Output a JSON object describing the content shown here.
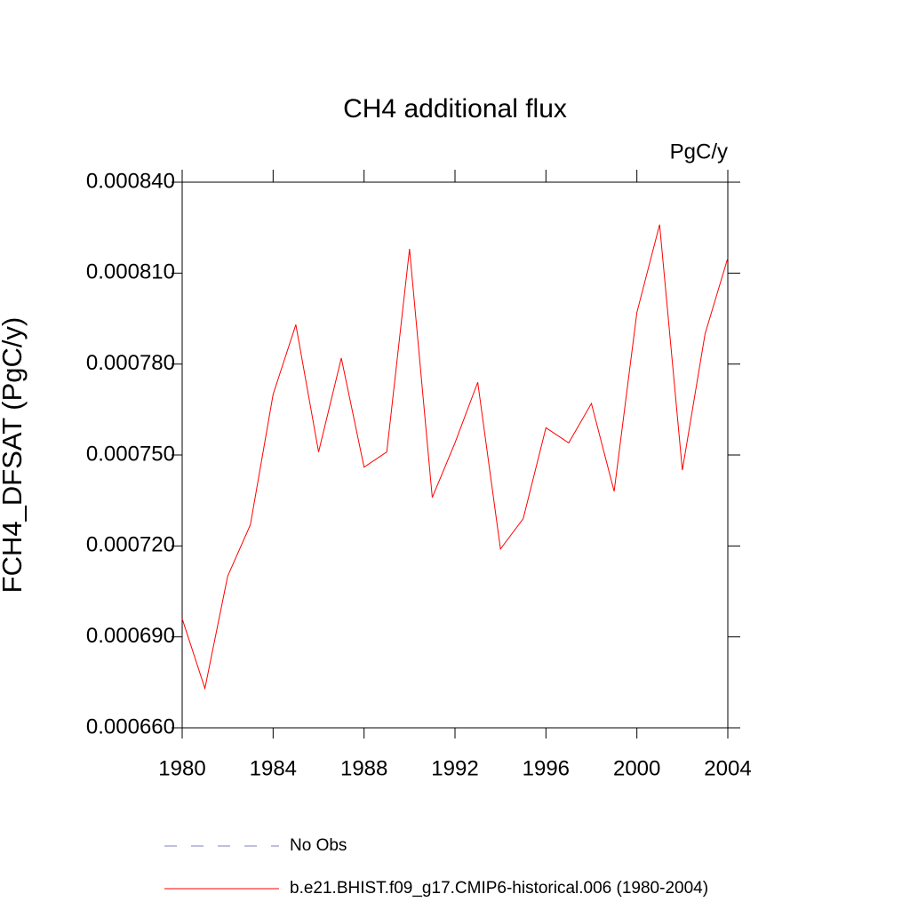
{
  "chart_data": {
    "type": "line",
    "title": "CH4 additional flux",
    "units": "PgC/y",
    "y_label": "FCH4_DFSAT  (PgC/y)",
    "x": [
      1980,
      1981,
      1982,
      1983,
      1984,
      1985,
      1986,
      1987,
      1988,
      1989,
      1990,
      1991,
      1992,
      1993,
      1994,
      1995,
      1996,
      1997,
      1998,
      1999,
      2000,
      2001,
      2002,
      2003,
      2004
    ],
    "series": [
      {
        "name": "No Obs",
        "color": "#7f7fbf",
        "dashed": true,
        "values": [
          null,
          null,
          null,
          null,
          null,
          null,
          null,
          null,
          null,
          null,
          null,
          null,
          null,
          null,
          null,
          null,
          null,
          null,
          null,
          null,
          null,
          null,
          null,
          null,
          null
        ]
      },
      {
        "name": "b.e21.BHIST.f09_g17.CMIP6-historical.006 (1980-2004)",
        "color": "#ff0000",
        "dashed": false,
        "values": [
          0.000696,
          0.000673,
          0.00071,
          0.000727,
          0.00077,
          0.000793,
          0.000751,
          0.000782,
          0.000746,
          0.000751,
          0.000818,
          0.000736,
          0.000754,
          0.000774,
          0.000719,
          0.000729,
          0.000759,
          0.000754,
          0.000767,
          0.000738,
          0.000797,
          0.000826,
          0.000745,
          0.00079,
          0.000815
        ]
      }
    ],
    "xlim": [
      1980,
      2004
    ],
    "xticks": [
      1980,
      1984,
      1988,
      1992,
      1996,
      2000,
      2004
    ],
    "ylim": [
      0.00066,
      0.00084
    ],
    "yticks": [
      {
        "value": 0.00066,
        "label": "0.000660"
      },
      {
        "value": 0.00069,
        "label": "0.000690"
      },
      {
        "value": 0.00072,
        "label": "0.000720"
      },
      {
        "value": 0.00075,
        "label": "0.000750"
      },
      {
        "value": 0.00078,
        "label": "0.000780"
      },
      {
        "value": 0.00081,
        "label": "0.000810"
      },
      {
        "value": 0.00084,
        "label": "0.000840"
      }
    ],
    "grid": false
  }
}
